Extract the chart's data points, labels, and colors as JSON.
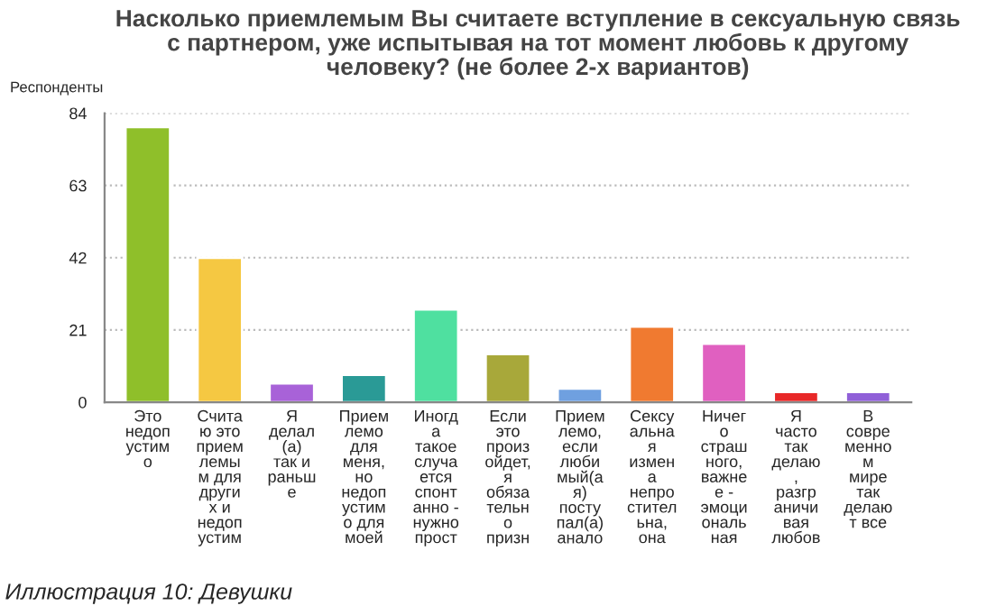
{
  "chart_data": {
    "type": "bar",
    "title": "Насколько приемлемым Вы считаете вступление в сексуальную связь\nс партнером, уже испытывая на тот момент любовь к другому\nчеловеку? (не более 2-х вариантов)",
    "ylabel": "Респонденты",
    "categories": [
      "Это\nнедоп\nустим\nо",
      "Счита\nю это\nприем\nлемы\nм для\nдруги\nх и\nнедоп\nустим",
      "Я\nделал\n(а)\nтак и\nраньш\nе",
      "Прием\nлемо\nдля\nменя,\nно\nнедоп\nустим\nо для\nмоей",
      "Иногд\nа\nтакое\nслуча\nется\nспонт\nанно -\nнужно\nпрост",
      "Если\nэто\nпроиз\nойдет,\nя\nобяза\nтельн\nо\nпризн",
      "Прием\nлемо,\nесли\nлюби\nмый(а\nя)\nпосту\nпал(а)\nанало",
      "Сексу\nальна\nя\nизмен\nа\nнепро\nстител\nьна,\nона",
      "Ничег\nо\nстраш\nного,\nважне\nе -\nэмоци\nональ\nная",
      "Я\nчасто\nтак\nделаю\n,\nразгр\nаничи\nвая\nлюбов",
      "В\nсовре\nменно\nм\nмире\nтак\nделаю\nт все"
    ],
    "values": [
      80,
      42,
      5.5,
      8,
      27,
      14,
      4,
      22,
      17,
      3,
      3
    ],
    "colors": [
      "#8fbf2a",
      "#f5c842",
      "#a862d8",
      "#2a9a96",
      "#4fe0a0",
      "#a8a83a",
      "#6fa0e0",
      "#f07a30",
      "#e060c0",
      "#e82828",
      "#9060d8"
    ],
    "ylim": [
      0,
      84
    ],
    "yticks": [
      0,
      21,
      42,
      63,
      84
    ],
    "grid": "y",
    "annotations": [
      "Иллюстрация 10: Девушки"
    ]
  }
}
